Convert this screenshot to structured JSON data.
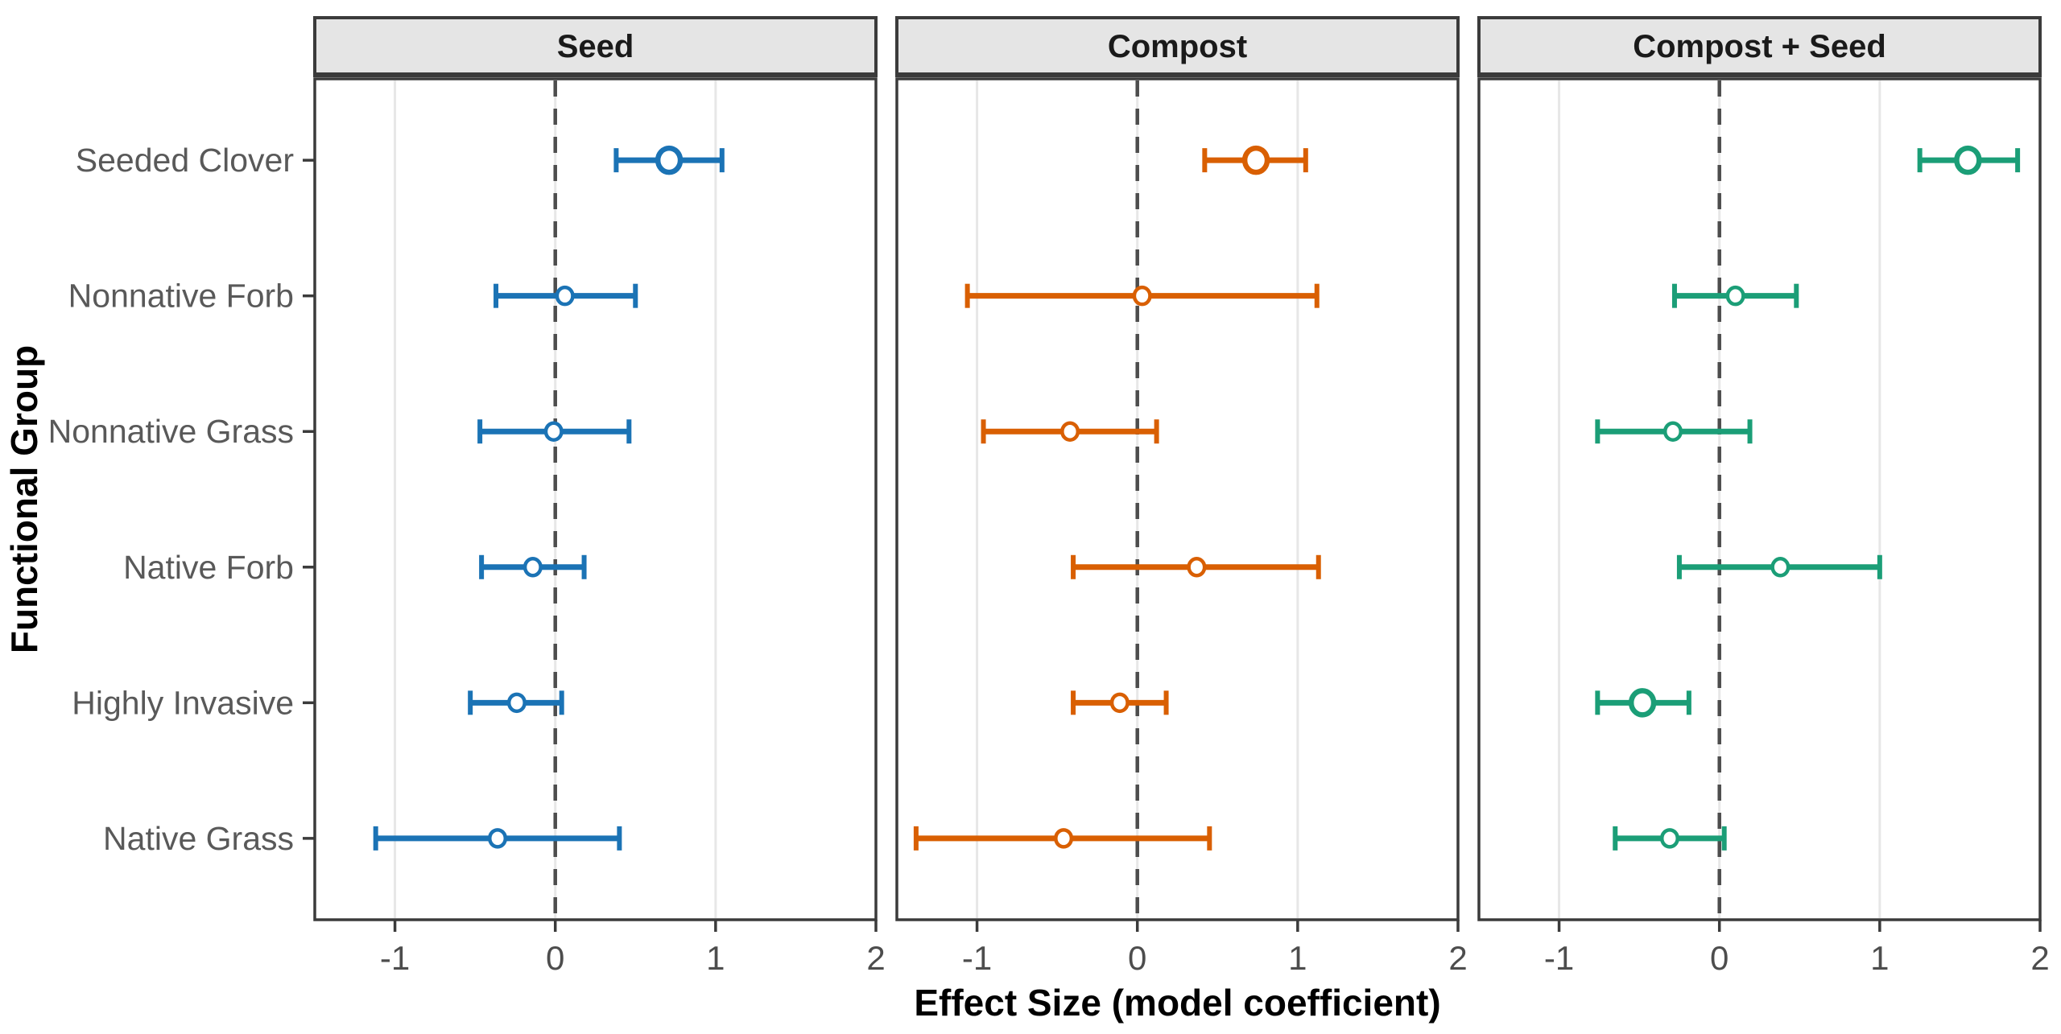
{
  "chart_data": {
    "type": "forest-dot-whisker",
    "xlabel": "Effect Size (model coefficient)",
    "ylabel": "Functional Group",
    "xlim": [
      -1.5,
      2
    ],
    "x_ticks": [
      -1,
      0,
      1,
      2
    ],
    "x_tick_labels": [
      "-1",
      "0",
      "1",
      "2"
    ],
    "zero_reference_line": 0,
    "grid": "major-x only, light gray",
    "legend_position": "none",
    "categories_top_to_bottom": [
      "Seeded Clover",
      "Nonnative Forb",
      "Nonnative Grass",
      "Native Forb",
      "Highly Invasive",
      "Native Grass"
    ],
    "facets": [
      {
        "label": "Seed",
        "color": "#1B73B5",
        "points": [
          {
            "group": "Seeded Clover",
            "estimate": 0.71,
            "lower": 0.38,
            "upper": 1.04,
            "large_marker": true
          },
          {
            "group": "Nonnative Forb",
            "estimate": 0.06,
            "lower": -0.37,
            "upper": 0.5,
            "large_marker": false
          },
          {
            "group": "Nonnative Grass",
            "estimate": -0.01,
            "lower": -0.47,
            "upper": 0.46,
            "large_marker": false
          },
          {
            "group": "Native Forb",
            "estimate": -0.14,
            "lower": -0.46,
            "upper": 0.18,
            "large_marker": false
          },
          {
            "group": "Highly Invasive",
            "estimate": -0.24,
            "lower": -0.53,
            "upper": 0.04,
            "large_marker": false
          },
          {
            "group": "Native Grass",
            "estimate": -0.36,
            "lower": -1.12,
            "upper": 0.4,
            "large_marker": false
          }
        ]
      },
      {
        "label": "Compost",
        "color": "#D95F02",
        "points": [
          {
            "group": "Seeded Clover",
            "estimate": 0.74,
            "lower": 0.42,
            "upper": 1.05,
            "large_marker": true
          },
          {
            "group": "Nonnative Forb",
            "estimate": 0.03,
            "lower": -1.06,
            "upper": 1.12,
            "large_marker": false
          },
          {
            "group": "Nonnative Grass",
            "estimate": -0.42,
            "lower": -0.96,
            "upper": 0.12,
            "large_marker": false
          },
          {
            "group": "Native Forb",
            "estimate": 0.37,
            "lower": -0.4,
            "upper": 1.13,
            "large_marker": false
          },
          {
            "group": "Highly Invasive",
            "estimate": -0.11,
            "lower": -0.4,
            "upper": 0.18,
            "large_marker": false
          },
          {
            "group": "Native Grass",
            "estimate": -0.46,
            "lower": -1.38,
            "upper": 0.45,
            "large_marker": false
          }
        ]
      },
      {
        "label": "Compost + Seed",
        "color": "#1B9E77",
        "points": [
          {
            "group": "Seeded Clover",
            "estimate": 1.55,
            "lower": 1.25,
            "upper": 1.86,
            "large_marker": true
          },
          {
            "group": "Nonnative Forb",
            "estimate": 0.1,
            "lower": -0.28,
            "upper": 0.48,
            "large_marker": false
          },
          {
            "group": "Nonnative Grass",
            "estimate": -0.29,
            "lower": -0.76,
            "upper": 0.19,
            "large_marker": false
          },
          {
            "group": "Native Forb",
            "estimate": 0.38,
            "lower": -0.25,
            "upper": 1.0,
            "large_marker": false
          },
          {
            "group": "Highly Invasive",
            "estimate": -0.48,
            "lower": -0.76,
            "upper": -0.19,
            "large_marker": true
          },
          {
            "group": "Native Grass",
            "estimate": -0.31,
            "lower": -0.65,
            "upper": 0.03,
            "large_marker": false
          }
        ]
      }
    ]
  },
  "style": {
    "background": "#FFFFFF",
    "panel_background": "#FFFFFF",
    "panel_border": "#3B3B3B",
    "header_fill": "#E5E5E5",
    "header_text_color": "#1A1A1A",
    "gridline_color": "#E7E7E7",
    "zero_line_color": "#4D4D4D",
    "axis_tick_color": "#3B3B3B",
    "tick_label_color": "#4D4D4D",
    "category_label_color": "#595959",
    "axis_title_color": "#000000",
    "marker_fill": "#FFFFFF"
  }
}
